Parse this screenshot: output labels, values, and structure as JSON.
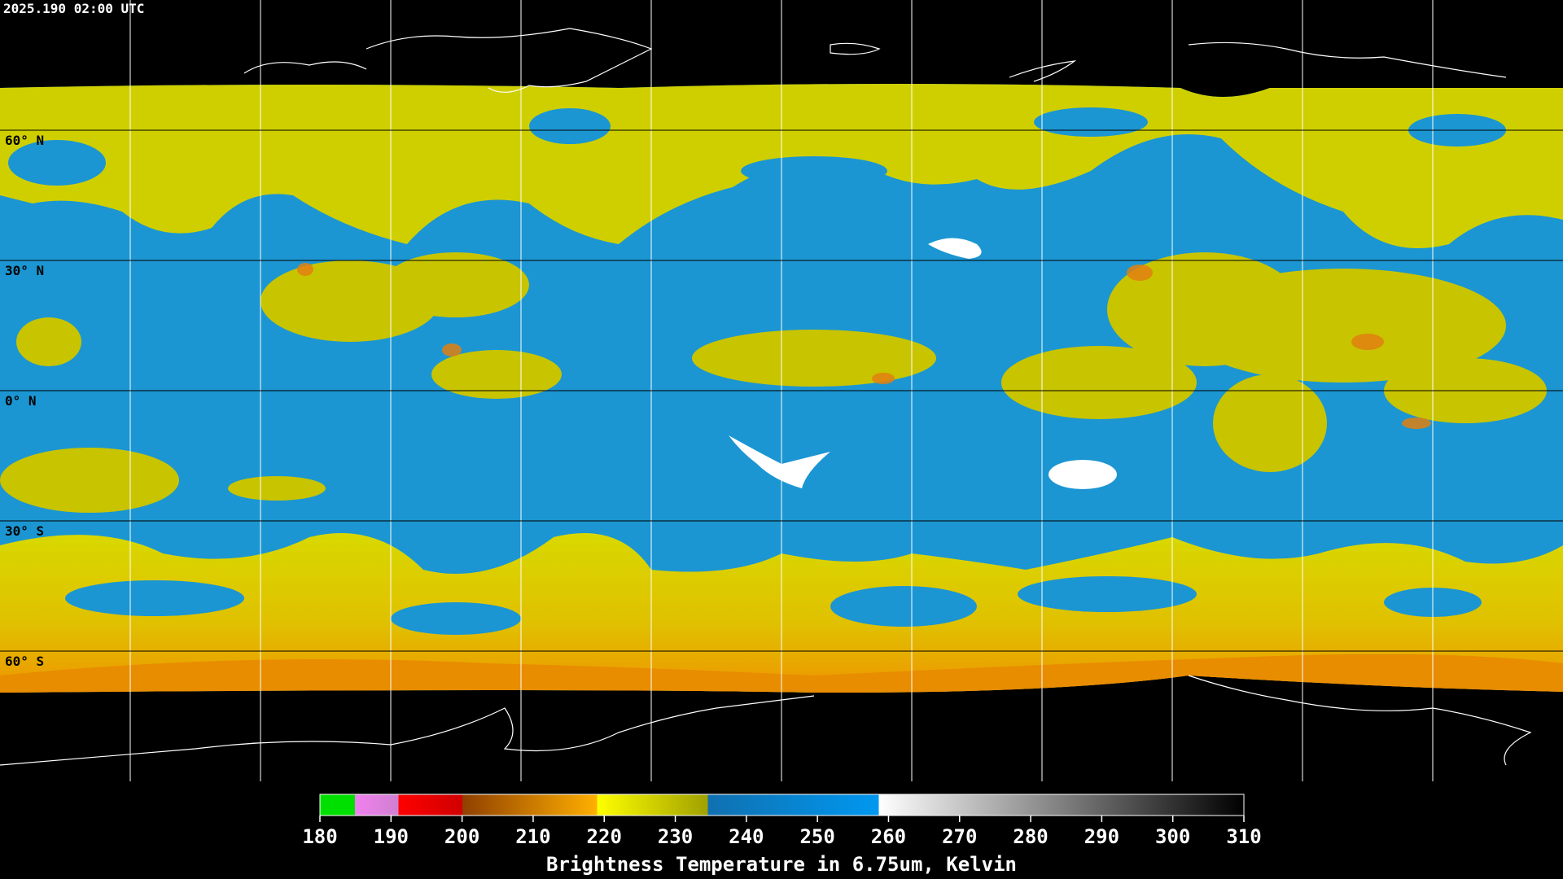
{
  "header": {
    "timestamp": "2025.190 02:00 UTC"
  },
  "map": {
    "latitude_labels": [
      "60° N",
      "30° N",
      "0° N",
      "30° S",
      "60° S"
    ]
  },
  "colorbar": {
    "ticks": [
      180,
      190,
      200,
      210,
      220,
      230,
      240,
      250,
      260,
      270,
      280,
      290,
      300,
      310
    ],
    "title": "Brightness Temperature in 6.75um, Kelvin"
  }
}
